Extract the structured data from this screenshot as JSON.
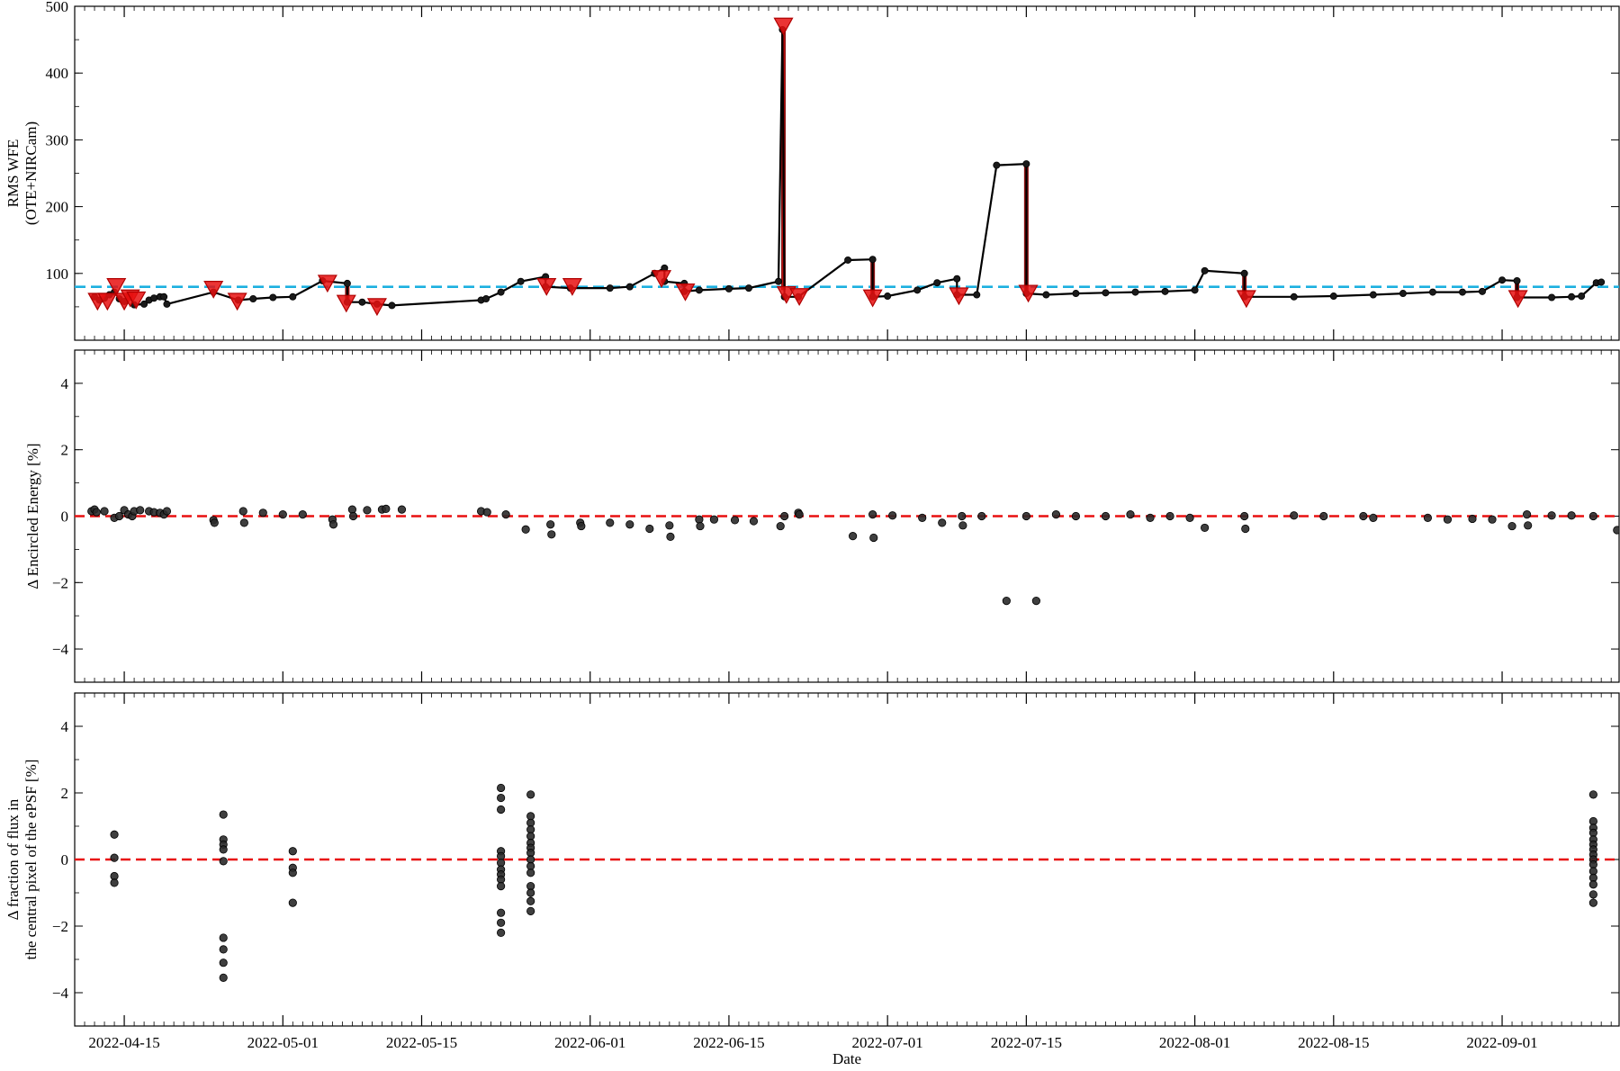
{
  "colors": {
    "line": "#000000",
    "marker": "#1a1a1a",
    "alert": "#e81010",
    "alert_dark": "#8b1010",
    "threshold_blue": "#1cb0e0",
    "zero_red": "#e81010"
  },
  "chart_data": [
    {
      "type": "line",
      "ylabel_lines": [
        "RMS WFE",
        "(OTE+NIRCam)"
      ],
      "ylim": [
        0,
        500
      ],
      "yticks": [
        100,
        200,
        300,
        400,
        500
      ],
      "threshold": 80,
      "series": [
        {
          "values": [
            [
              "2022-04-12",
              65
            ],
            [
              "2022-04-12.5",
              60
            ],
            [
              "2022-04-13",
              63
            ],
            [
              "2022-04-13.5",
              68
            ],
            [
              "2022-04-14",
              72
            ],
            [
              "2022-04-14.5",
              62
            ],
            [
              "2022-04-15",
              58
            ],
            [
              "2022-04-15.5",
              66
            ],
            [
              "2022-04-16",
              53
            ],
            [
              "2022-04-17",
              54
            ],
            [
              "2022-04-17.5",
              60
            ],
            [
              "2022-04-18",
              63
            ],
            [
              "2022-04-18.6",
              65
            ],
            [
              "2022-04-19",
              65
            ],
            [
              "2022-04-19.3",
              54
            ],
            [
              "2022-04-24",
              72
            ],
            [
              "2022-04-26.5",
              60
            ],
            [
              "2022-04-28",
              62
            ],
            [
              "2022-04-30",
              64
            ],
            [
              "2022-05-02",
              65
            ],
            [
              "2022-05-05",
              89
            ],
            [
              "2022-05-07.5",
              85
            ],
            [
              "2022-05-07.5",
              57
            ],
            [
              "2022-05-09",
              57
            ],
            [
              "2022-05-10.5",
              54
            ],
            [
              "2022-05-12",
              52
            ],
            [
              "2022-05-21",
              60
            ],
            [
              "2022-05-21.5",
              62
            ],
            [
              "2022-05-23",
              72
            ],
            [
              "2022-05-25",
              88
            ],
            [
              "2022-05-27.5",
              95
            ],
            [
              "2022-05-27.5",
              80
            ],
            [
              "2022-05-30",
              78
            ],
            [
              "2022-06-03",
              78
            ],
            [
              "2022-06-05",
              80
            ],
            [
              "2022-06-07.5",
              100
            ],
            [
              "2022-06-08.5",
              108
            ],
            [
              "2022-06-08.5",
              88
            ],
            [
              "2022-06-10.5",
              85
            ],
            [
              "2022-06-10.5",
              73
            ],
            [
              "2022-06-12",
              75
            ],
            [
              "2022-06-15",
              77
            ],
            [
              "2022-06-17",
              78
            ],
            [
              "2022-06-20",
              88
            ],
            [
              "2022-06-20.4",
              465
            ],
            [
              "2022-06-20.6",
              65
            ],
            [
              "2022-06-22",
              65
            ],
            [
              "2022-06-27",
              120
            ],
            [
              "2022-06-29.5",
              121
            ],
            [
              "2022-06-29.5",
              65
            ],
            [
              "2022-07-01",
              66
            ],
            [
              "2022-07-04",
              75
            ],
            [
              "2022-07-06",
              86
            ],
            [
              "2022-07-08",
              92
            ],
            [
              "2022-07-08",
              68
            ],
            [
              "2022-07-10",
              68
            ],
            [
              "2022-07-12",
              262
            ],
            [
              "2022-07-15",
              264
            ],
            [
              "2022-07-15",
              70
            ],
            [
              "2022-07-17",
              68
            ],
            [
              "2022-07-20",
              70
            ],
            [
              "2022-07-23",
              71
            ],
            [
              "2022-07-26",
              72
            ],
            [
              "2022-07-29",
              73
            ],
            [
              "2022-08-01",
              75
            ],
            [
              "2022-08-02",
              104
            ],
            [
              "2022-08-06",
              100
            ],
            [
              "2022-08-06",
              65
            ],
            [
              "2022-08-11",
              65
            ],
            [
              "2022-08-15",
              66
            ],
            [
              "2022-08-19",
              68
            ],
            [
              "2022-08-22",
              70
            ],
            [
              "2022-08-25",
              72
            ],
            [
              "2022-08-28",
              72
            ],
            [
              "2022-08-30",
              73
            ],
            [
              "2022-09-01",
              90
            ],
            [
              "2022-09-02.5",
              89
            ],
            [
              "2022-09-02.5",
              64
            ],
            [
              "2022-09-06",
              64
            ],
            [
              "2022-09-08",
              65
            ],
            [
              "2022-09-09",
              66
            ],
            [
              "2022-09-10.5",
              86
            ],
            [
              "2022-09-11",
              87
            ]
          ]
        }
      ],
      "alerts": [
        [
          "2022-04-12.3",
          58
        ],
        [
          "2022-04-13.3",
          58
        ],
        [
          "2022-04-14.2",
          80
        ],
        [
          "2022-04-15",
          58
        ],
        [
          "2022-04-15.6",
          63
        ],
        [
          "2022-04-16.2",
          60
        ],
        [
          "2022-04-24",
          76
        ],
        [
          "2022-04-26.4",
          58
        ],
        [
          "2022-05-05.5",
          85
        ],
        [
          "2022-05-07.4",
          55
        ],
        [
          "2022-05-10.5",
          50
        ],
        [
          "2022-05-27.6",
          80
        ],
        [
          "2022-05-30.2",
          80
        ],
        [
          "2022-06-08.2",
          92
        ],
        [
          "2022-06-10.6",
          72
        ],
        [
          "2022-06-20.5",
          470
        ],
        [
          "2022-06-20.8",
          68
        ],
        [
          "2022-06-22.1",
          65
        ],
        [
          "2022-06-29.5",
          63
        ],
        [
          "2022-07-08.2",
          66
        ],
        [
          "2022-07-15.2",
          70
        ],
        [
          "2022-08-06.2",
          62
        ],
        [
          "2022-09-02.6",
          62
        ]
      ],
      "drops": [
        [
          "2022-06-20.5",
          465,
          75
        ],
        [
          "2022-06-29.5",
          121,
          68
        ],
        [
          "2022-07-15",
          264,
          74
        ],
        [
          "2022-08-06",
          100,
          68
        ],
        [
          "2022-05-07.5",
          85,
          58
        ],
        [
          "2022-09-02.5",
          89,
          66
        ]
      ]
    },
    {
      "type": "scatter",
      "ylabel_lines": [
        "Δ Encircled Energy [%]"
      ],
      "ylim": [
        -5,
        5
      ],
      "yticks": [
        -4,
        -2,
        0,
        2,
        4
      ],
      "reference": 0,
      "points": [
        [
          "2022-04-11.7",
          0.15
        ],
        [
          "2022-04-12",
          0.2
        ],
        [
          "2022-04-12.2",
          0.12
        ],
        [
          "2022-04-13",
          0.15
        ],
        [
          "2022-04-14",
          -0.05
        ],
        [
          "2022-04-14.5",
          0.0
        ],
        [
          "2022-04-15",
          0.18
        ],
        [
          "2022-04-15.4",
          0.05
        ],
        [
          "2022-04-15.8",
          0.0
        ],
        [
          "2022-04-16",
          0.15
        ],
        [
          "2022-04-16.6",
          0.18
        ],
        [
          "2022-04-17.5",
          0.15
        ],
        [
          "2022-04-18",
          0.12
        ],
        [
          "2022-04-18.6",
          0.1
        ],
        [
          "2022-04-19",
          0.05
        ],
        [
          "2022-04-19.3",
          0.15
        ],
        [
          "2022-04-24",
          -0.12
        ],
        [
          "2022-04-24.1",
          -0.2
        ],
        [
          "2022-04-27",
          0.15
        ],
        [
          "2022-04-27.1",
          -0.2
        ],
        [
          "2022-04-29",
          0.1
        ],
        [
          "2022-05-01",
          0.05
        ],
        [
          "2022-05-03",
          0.05
        ],
        [
          "2022-05-06",
          -0.1
        ],
        [
          "2022-05-06.1",
          -0.25
        ],
        [
          "2022-05-08",
          0.2
        ],
        [
          "2022-05-08.1",
          0.0
        ],
        [
          "2022-05-09.5",
          0.18
        ],
        [
          "2022-05-11",
          0.2
        ],
        [
          "2022-05-11.4",
          0.22
        ],
        [
          "2022-05-13",
          0.2
        ],
        [
          "2022-05-21",
          0.15
        ],
        [
          "2022-05-21.6",
          0.12
        ],
        [
          "2022-05-23.5",
          0.05
        ],
        [
          "2022-05-25.5",
          -0.4
        ],
        [
          "2022-05-28",
          -0.25
        ],
        [
          "2022-05-28.1",
          -0.55
        ],
        [
          "2022-05-31",
          -0.2
        ],
        [
          "2022-05-31.1",
          -0.3
        ],
        [
          "2022-06-03",
          -0.2
        ],
        [
          "2022-06-05",
          -0.25
        ],
        [
          "2022-06-07",
          -0.38
        ],
        [
          "2022-06-09",
          -0.28
        ],
        [
          "2022-06-09.1",
          -0.62
        ],
        [
          "2022-06-12",
          -0.1
        ],
        [
          "2022-06-12.1",
          -0.3
        ],
        [
          "2022-06-13.5",
          -0.1
        ],
        [
          "2022-06-15.6",
          -0.12
        ],
        [
          "2022-06-17.5",
          -0.15
        ],
        [
          "2022-06-20.2",
          -0.3
        ],
        [
          "2022-06-20.6",
          0.0
        ],
        [
          "2022-06-22",
          0.1
        ],
        [
          "2022-06-22.1",
          0.05
        ],
        [
          "2022-06-27.5",
          -0.6
        ],
        [
          "2022-06-29.5",
          0.05
        ],
        [
          "2022-06-29.6",
          -0.65
        ],
        [
          "2022-07-01.5",
          0.02
        ],
        [
          "2022-07-04.5",
          -0.05
        ],
        [
          "2022-07-06.5",
          -0.2
        ],
        [
          "2022-07-08.5",
          0.0
        ],
        [
          "2022-07-08.6",
          -0.28
        ],
        [
          "2022-07-10.5",
          0.0
        ],
        [
          "2022-07-13",
          -2.55
        ],
        [
          "2022-07-15",
          0.0
        ],
        [
          "2022-07-16",
          -2.55
        ],
        [
          "2022-07-18",
          0.05
        ],
        [
          "2022-07-20",
          0.0
        ],
        [
          "2022-07-23",
          0.0
        ],
        [
          "2022-07-25.5",
          0.05
        ],
        [
          "2022-07-27.5",
          -0.05
        ],
        [
          "2022-07-29.5",
          0.0
        ],
        [
          "2022-07-31.5",
          -0.05
        ],
        [
          "2022-08-02",
          -0.35
        ],
        [
          "2022-08-06",
          0.0
        ],
        [
          "2022-08-06.1",
          -0.38
        ],
        [
          "2022-08-11",
          0.02
        ],
        [
          "2022-08-14",
          0.0
        ],
        [
          "2022-08-18",
          0.0
        ],
        [
          "2022-08-19",
          -0.05
        ],
        [
          "2022-08-24.5",
          -0.05
        ],
        [
          "2022-08-26.5",
          -0.1
        ],
        [
          "2022-08-29",
          -0.08
        ],
        [
          "2022-08-31",
          -0.1
        ],
        [
          "2022-09-02",
          -0.3
        ],
        [
          "2022-09-03.5",
          0.05
        ],
        [
          "2022-09-03.6",
          -0.28
        ],
        [
          "2022-09-06",
          0.02
        ],
        [
          "2022-09-08",
          0.02
        ],
        [
          "2022-09-10.2",
          0.0
        ],
        [
          "2022-09-12.6",
          -0.42
        ]
      ]
    },
    {
      "type": "scatter",
      "ylabel_lines": [
        "Δ fraction of flux in",
        "the central pixel of the ePSF [%]"
      ],
      "ylim": [
        -5,
        5
      ],
      "yticks": [
        -4,
        -2,
        0,
        2,
        4
      ],
      "reference": 0,
      "points": [
        [
          "2022-04-14",
          0.75
        ],
        [
          "2022-04-14",
          0.05
        ],
        [
          "2022-04-14",
          -0.5
        ],
        [
          "2022-04-14",
          -0.7
        ],
        [
          "2022-04-25",
          1.35
        ],
        [
          "2022-04-25",
          0.6
        ],
        [
          "2022-04-25",
          0.45
        ],
        [
          "2022-04-25",
          0.3
        ],
        [
          "2022-04-25",
          -0.05
        ],
        [
          "2022-04-25",
          -2.35
        ],
        [
          "2022-04-25",
          -2.7
        ],
        [
          "2022-04-25",
          -3.1
        ],
        [
          "2022-04-25",
          -3.55
        ],
        [
          "2022-05-02",
          0.25
        ],
        [
          "2022-05-02",
          -0.25
        ],
        [
          "2022-05-02",
          -0.4
        ],
        [
          "2022-05-02",
          -1.3
        ],
        [
          "2022-05-23",
          2.15
        ],
        [
          "2022-05-23",
          1.85
        ],
        [
          "2022-05-23",
          1.5
        ],
        [
          "2022-05-23",
          0.25
        ],
        [
          "2022-05-23",
          0.1
        ],
        [
          "2022-05-23",
          -0.1
        ],
        [
          "2022-05-23",
          -0.3
        ],
        [
          "2022-05-23",
          -0.45
        ],
        [
          "2022-05-23",
          -0.6
        ],
        [
          "2022-05-23",
          -0.8
        ],
        [
          "2022-05-23",
          -1.6
        ],
        [
          "2022-05-23",
          -1.9
        ],
        [
          "2022-05-23",
          -2.2
        ],
        [
          "2022-05-26",
          1.95
        ],
        [
          "2022-05-26",
          1.3
        ],
        [
          "2022-05-26",
          1.1
        ],
        [
          "2022-05-26",
          0.9
        ],
        [
          "2022-05-26",
          0.7
        ],
        [
          "2022-05-26",
          0.5
        ],
        [
          "2022-05-26",
          0.35
        ],
        [
          "2022-05-26",
          0.2
        ],
        [
          "2022-05-26",
          0.0
        ],
        [
          "2022-05-26",
          -0.2
        ],
        [
          "2022-05-26",
          -0.4
        ],
        [
          "2022-05-26",
          -0.8
        ],
        [
          "2022-05-26",
          -1.0
        ],
        [
          "2022-05-26",
          -1.25
        ],
        [
          "2022-05-26",
          -1.55
        ],
        [
          "2022-09-10.2",
          1.95
        ],
        [
          "2022-09-10.2",
          1.15
        ],
        [
          "2022-09-10.2",
          0.95
        ],
        [
          "2022-09-10.2",
          0.8
        ],
        [
          "2022-09-10.2",
          0.6
        ],
        [
          "2022-09-10.2",
          0.45
        ],
        [
          "2022-09-10.2",
          0.3
        ],
        [
          "2022-09-10.2",
          0.15
        ],
        [
          "2022-09-10.2",
          0.0
        ],
        [
          "2022-09-10.2",
          -0.15
        ],
        [
          "2022-09-10.2",
          -0.35
        ],
        [
          "2022-09-10.2",
          -0.55
        ],
        [
          "2022-09-10.2",
          -0.75
        ],
        [
          "2022-09-10.2",
          -1.05
        ],
        [
          "2022-09-10.2",
          -1.3
        ]
      ]
    }
  ],
  "x_axis": {
    "label": "Date",
    "start": "2022-04-10",
    "end": "2022-09-12.8",
    "tick_labels": [
      "2022-04-15",
      "2022-05-01",
      "2022-05-15",
      "2022-06-01",
      "2022-06-15",
      "2022-07-01",
      "2022-07-15",
      "2022-08-01",
      "2022-08-15",
      "2022-09-01"
    ]
  }
}
